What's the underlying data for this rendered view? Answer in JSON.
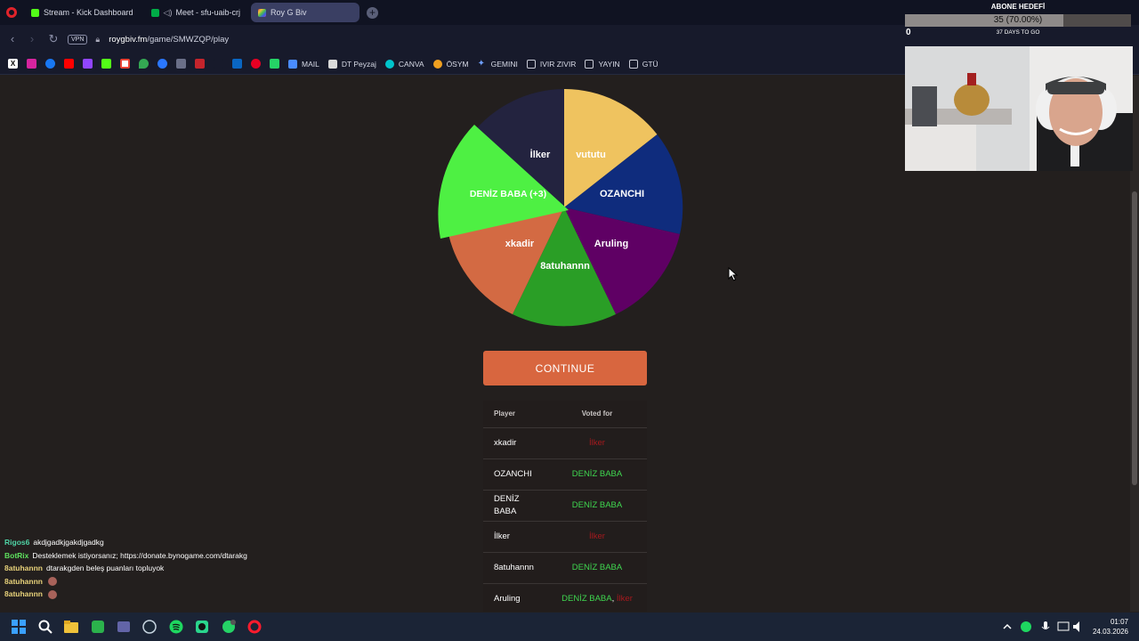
{
  "browser": {
    "tabs": [
      {
        "label": "Stream - Kick Dashboard",
        "icon": "kick-icon",
        "color": "#53fc18"
      },
      {
        "label": "Meet - sfu-uaib-crj",
        "icon": "google-meet-icon",
        "color": "#00ac47"
      },
      {
        "label": "Roy G Biv",
        "icon": "roygbiv-icon",
        "color": "#e0503a"
      }
    ],
    "new_tab": "+",
    "vpn_label": "VPN",
    "url_host": "roygbiv.fm",
    "url_path": "/game/SMWZQP/play",
    "bookmarks": [
      {
        "label": "MAIL",
        "icon": "mail-icon"
      },
      {
        "label": "DT Peyzaj",
        "icon": "dt-icon"
      },
      {
        "label": "CANVA",
        "icon": "canva-icon"
      },
      {
        "label": "ÖSYM",
        "icon": "osym-icon"
      },
      {
        "label": "GEMINI",
        "icon": "gemini-icon"
      },
      {
        "label": "IVIR ZIVIR",
        "icon": "folder-icon"
      },
      {
        "label": "YAYIN",
        "icon": "folder-icon"
      },
      {
        "label": "GTÜ",
        "icon": "folder-icon"
      }
    ],
    "bookmark_icons": [
      "x-icon",
      "instagram-icon",
      "facebook-icon",
      "youtube-icon",
      "twitch-icon",
      "kick-icon",
      "gmail-icon",
      "maps-icon",
      "dollar-icon",
      "link-icon",
      "pin-icon",
      "blank-icon",
      "linkedin-icon",
      "pinterest-icon",
      "whatsapp-icon"
    ]
  },
  "game": {
    "wheel_segments": [
      {
        "label": "vututu",
        "color": "#efc35f"
      },
      {
        "label": "OZANCHI",
        "color": "#0f2c7d"
      },
      {
        "label": "Aruling",
        "color": "#5f0064"
      },
      {
        "label": "8atuhannn",
        "color": "#2a9e26"
      },
      {
        "label": "xkadir",
        "color": "#d36a43"
      },
      {
        "label": "DENİZ BABA (+3)",
        "color": "#4ef043"
      },
      {
        "label": "İlker",
        "color": "#23233f"
      }
    ],
    "continue_label": "CONTINUE",
    "votes": {
      "header_player": "Player",
      "header_voted": "Voted for",
      "rows": [
        {
          "player": "xkadir",
          "votes": [
            {
              "name": "İlker",
              "color": "red"
            }
          ]
        },
        {
          "player": "OZANCHI",
          "votes": [
            {
              "name": "DENİZ BABA",
              "color": "green"
            }
          ]
        },
        {
          "player": "DENİZ BABA",
          "votes": [
            {
              "name": "DENİZ BABA",
              "color": "green"
            }
          ]
        },
        {
          "player": "İlker",
          "votes": [
            {
              "name": "İlker",
              "color": "red"
            }
          ]
        },
        {
          "player": "8atuhannn",
          "votes": [
            {
              "name": "DENİZ BABA",
              "color": "green"
            }
          ]
        },
        {
          "player": "Aruling",
          "votes": [
            {
              "name": "DENİZ BABA",
              "color": "green"
            },
            {
              "name": "İlker",
              "color": "red"
            }
          ]
        }
      ]
    }
  },
  "chat": [
    {
      "user": "Rigos6",
      "color": "#4fd4a6",
      "text": "akdjgadkjgakdjgadkg",
      "emote": false
    },
    {
      "user": "BotRix",
      "color": "#5ee05e",
      "text": "Desteklemek istiyorsanız; https://donate.bynogame.com/dtarakg",
      "emote": false
    },
    {
      "user": "8atuhannn",
      "color": "#e8d27a",
      "text": "dtarakgden beleş puanları topluyok",
      "emote": false
    },
    {
      "user": "8atuhannn",
      "color": "#e8d27a",
      "text": "",
      "emote": true
    },
    {
      "user": "8atuhannn",
      "color": "#e8d27a",
      "text": "",
      "emote": true
    }
  ],
  "overlay": {
    "goal_title": "ABONE HEDEFİ",
    "goal_count": "35 (70.00%)",
    "goal_progress": 0.7,
    "goal_left": "0",
    "goal_days": "37 DAYS TO GO"
  },
  "taskbar": {
    "time": "01:07",
    "date": "24.03.2026",
    "apps": [
      "windows-start-icon",
      "search-icon",
      "file-explorer-icon",
      "green-app-icon",
      "teams-icon",
      "steam-icon",
      "spotify-icon",
      "obs-icon",
      "whatsapp-icon",
      "opera-icon"
    ]
  }
}
